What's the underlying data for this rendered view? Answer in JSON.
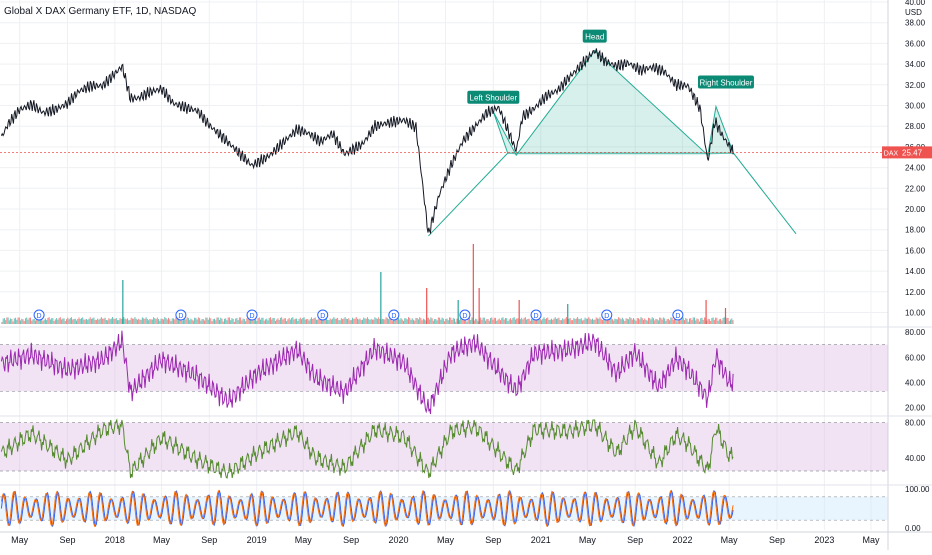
{
  "header": {
    "title": "Global X DAX Germany ETF, 1D, NASDAQ"
  },
  "colors": {
    "price_line": "#131722",
    "pattern_fill": "#22ab94",
    "pattern_label_bg": "#0b8a76",
    "rsi_line": "#9c27b0",
    "band_fill": "#e1bee7",
    "osc2_line": "#558b2f",
    "stoch_k": "#2962ff",
    "stoch_d": "#ff6d00",
    "stoch_band": "#cfe8fc",
    "volume_up": "#26a69a",
    "volume_down": "#ef5350",
    "dividend": "#2962ff",
    "price_tag": "#ef5350"
  },
  "chart_data": [
    {
      "type": "line",
      "name": "price",
      "y_axis_unit": "USD",
      "y_ticks": [
        "40.00",
        "38.00",
        "36.00",
        "34.00",
        "32.00",
        "30.00",
        "28.00",
        "26.00",
        "24.00",
        "22.00",
        "20.00",
        "18.00",
        "16.00",
        "14.00",
        "12.00",
        "10.00"
      ],
      "ylim": [
        8.6,
        40.0
      ],
      "x_labels": [
        "May",
        "Sep",
        "2018",
        "May",
        "Sep",
        "2019",
        "May",
        "Sep",
        "2020",
        "May",
        "Sep",
        "2021",
        "May",
        "Sep",
        "2022",
        "May",
        "Sep",
        "2023",
        "May"
      ],
      "series": [
        {
          "points": [
            [
              "2017-03-15",
              26.9
            ],
            [
              "2017-04-01",
              28.2
            ],
            [
              "2017-05-01",
              29.6
            ],
            [
              "2017-06-01",
              30.1
            ],
            [
              "2017-07-01",
              29.3
            ],
            [
              "2017-08-01",
              29.6
            ],
            [
              "2017-09-01",
              30.2
            ],
            [
              "2017-10-01",
              31.4
            ],
            [
              "2017-11-01",
              31.9
            ],
            [
              "2017-12-01",
              31.9
            ],
            [
              "2018-01-20",
              33.8
            ],
            [
              "2018-02-10",
              30.7
            ],
            [
              "2018-03-01",
              30.7
            ],
            [
              "2018-04-01",
              31.3
            ],
            [
              "2018-05-01",
              31.6
            ],
            [
              "2018-06-01",
              30.2
            ],
            [
              "2018-07-01",
              29.8
            ],
            [
              "2018-08-01",
              29.5
            ],
            [
              "2018-09-01",
              28.1
            ],
            [
              "2018-10-15",
              26.6
            ],
            [
              "2018-12-20",
              24.2
            ],
            [
              "2019-02-01",
              25.1
            ],
            [
              "2019-03-01",
              26.1
            ],
            [
              "2019-04-15",
              27.7
            ],
            [
              "2019-05-15",
              27.3
            ],
            [
              "2019-06-15",
              26.5
            ],
            [
              "2019-07-15",
              27.3
            ],
            [
              "2019-08-15",
              25.3
            ],
            [
              "2019-10-01",
              26.3
            ],
            [
              "2019-11-01",
              28.0
            ],
            [
              "2019-12-01",
              28.3
            ],
            [
              "2020-01-15",
              28.6
            ],
            [
              "2020-02-15",
              27.9
            ],
            [
              "2020-03-18",
              17.5
            ],
            [
              "2020-04-15",
              21.4
            ],
            [
              "2020-05-15",
              24.2
            ],
            [
              "2020-06-15",
              26.6
            ],
            [
              "2020-07-15",
              27.9
            ],
            [
              "2020-08-15",
              29.3
            ],
            [
              "2020-09-15",
              29.8
            ],
            [
              "2020-10-30",
              25.6
            ],
            [
              "2020-11-15",
              28.9
            ],
            [
              "2020-12-15",
              29.7
            ],
            [
              "2021-01-15",
              30.9
            ],
            [
              "2021-02-15",
              31.5
            ],
            [
              "2021-03-15",
              32.7
            ],
            [
              "2021-04-15",
              33.9
            ],
            [
              "2021-05-20",
              35.3
            ],
            [
              "2021-06-15",
              34.3
            ],
            [
              "2021-07-15",
              33.8
            ],
            [
              "2021-08-15",
              34.1
            ],
            [
              "2021-09-15",
              33.4
            ],
            [
              "2021-10-15",
              33.7
            ],
            [
              "2021-11-15",
              33.3
            ],
            [
              "2021-12-15",
              32.0
            ],
            [
              "2022-01-15",
              31.9
            ],
            [
              "2022-02-15",
              29.7
            ],
            [
              "2022-03-07",
              24.6
            ],
            [
              "2022-03-25",
              28.5
            ],
            [
              "2022-04-15",
              27.0
            ],
            [
              "2022-05-12",
              25.5
            ]
          ]
        }
      ],
      "pattern": {
        "name": "Head and Shoulders",
        "labels": [
          "Left Shoulder",
          "Head",
          "Right Shoulder"
        ],
        "points": [
          [
            "2020-10-08",
            25.4
          ],
          [
            "2020-09-01",
            29.4
          ],
          [
            "2020-10-30",
            25.2
          ],
          [
            "2021-05-20",
            35.3
          ],
          [
            "2022-03-07",
            25.2
          ],
          [
            "2022-03-28",
            29.9
          ],
          [
            "2022-05-12",
            25.4
          ],
          [
            "2022-10-20",
            17.6
          ]
        ],
        "rally_line": [
          [
            "2020-03-18",
            17.4
          ],
          [
            "2020-10-08",
            25.4
          ]
        ]
      },
      "last_price": {
        "label": "DAX",
        "value": "25.47"
      }
    },
    {
      "type": "bar",
      "name": "volume",
      "dividend_marker": "D",
      "dividends": [
        "2017-06-20",
        "2018-06-20",
        "2018-12-20",
        "2019-06-20",
        "2019-12-20",
        "2020-06-20",
        "2020-12-20",
        "2021-06-20",
        "2021-12-20"
      ],
      "spikes": [
        [
          "2018-01-20",
          0.55,
          "up"
        ],
        [
          "2019-11-15",
          0.65,
          "up"
        ],
        [
          "2020-03-12",
          0.45,
          "down"
        ],
        [
          "2020-06-01",
          0.3,
          "up"
        ],
        [
          "2020-07-10",
          1.0,
          "down"
        ],
        [
          "2020-07-25",
          0.45,
          "down"
        ],
        [
          "2020-11-05",
          0.3,
          "down"
        ],
        [
          "2021-03-10",
          0.25,
          "up"
        ],
        [
          "2022-03-01",
          0.3,
          "down"
        ],
        [
          "2022-04-20",
          0.2,
          "down"
        ]
      ]
    },
    {
      "type": "line",
      "name": "oscillator-1",
      "ticks": [
        "80.00",
        "60.00",
        "40.00",
        "20.00"
      ],
      "band": [
        33,
        70
      ],
      "ylim": [
        15,
        84
      ],
      "series": [
        {
          "points": [
            [
              "2017-03-15",
              55
            ],
            [
              "2017-06-01",
              62
            ],
            [
              "2017-09-01",
              50
            ],
            [
              "2017-12-01",
              58
            ],
            [
              "2018-01-20",
              73
            ],
            [
              "2018-02-10",
              32
            ],
            [
              "2018-05-01",
              58
            ],
            [
              "2018-08-01",
              45
            ],
            [
              "2018-10-20",
              25
            ],
            [
              "2019-01-01",
              47
            ],
            [
              "2019-04-15",
              66
            ],
            [
              "2019-06-01",
              44
            ],
            [
              "2019-08-15",
              32
            ],
            [
              "2019-11-01",
              67
            ],
            [
              "2020-01-15",
              56
            ],
            [
              "2020-03-18",
              18
            ],
            [
              "2020-05-15",
              63
            ],
            [
              "2020-07-15",
              72
            ],
            [
              "2020-10-30",
              33
            ],
            [
              "2020-12-15",
              63
            ],
            [
              "2021-03-15",
              66
            ],
            [
              "2021-05-20",
              73
            ],
            [
              "2021-07-15",
              47
            ],
            [
              "2021-09-01",
              64
            ],
            [
              "2021-11-01",
              36
            ],
            [
              "2021-12-15",
              59
            ],
            [
              "2022-01-15",
              50
            ],
            [
              "2022-03-07",
              27
            ],
            [
              "2022-03-28",
              61
            ],
            [
              "2022-05-01",
              40
            ],
            [
              "2022-05-12",
              40
            ]
          ]
        }
      ]
    },
    {
      "type": "line",
      "name": "oscillator-2",
      "ticks": [
        "80.00",
        "40.00"
      ],
      "band": [
        25,
        80
      ],
      "ylim": [
        17,
        83
      ],
      "series": [
        {
          "points": [
            [
              "2017-03-15",
              45
            ],
            [
              "2017-06-01",
              68
            ],
            [
              "2017-09-01",
              37
            ],
            [
              "2017-12-01",
              72
            ],
            [
              "2018-01-20",
              78
            ],
            [
              "2018-02-10",
              23
            ],
            [
              "2018-05-01",
              63
            ],
            [
              "2018-08-01",
              38
            ],
            [
              "2018-10-20",
              22
            ],
            [
              "2019-01-01",
              45
            ],
            [
              "2019-04-15",
              70
            ],
            [
              "2019-06-01",
              40
            ],
            [
              "2019-08-15",
              28
            ],
            [
              "2019-11-01",
              72
            ],
            [
              "2020-01-15",
              64
            ],
            [
              "2020-03-18",
              22
            ],
            [
              "2020-05-15",
              70
            ],
            [
              "2020-07-15",
              76
            ],
            [
              "2020-10-30",
              25
            ],
            [
              "2020-12-15",
              72
            ],
            [
              "2021-03-15",
              70
            ],
            [
              "2021-05-20",
              78
            ],
            [
              "2021-07-15",
              45
            ],
            [
              "2021-09-01",
              76
            ],
            [
              "2021-11-01",
              33
            ],
            [
              "2021-12-15",
              66
            ],
            [
              "2022-01-15",
              56
            ],
            [
              "2022-03-07",
              25
            ],
            [
              "2022-03-28",
              75
            ],
            [
              "2022-05-01",
              42
            ],
            [
              "2022-05-12",
              42
            ]
          ]
        }
      ]
    },
    {
      "type": "line",
      "name": "stochastic",
      "ticks": [
        "100.00",
        "0.00"
      ],
      "band": [
        20,
        80
      ],
      "ylim": [
        0,
        100
      ],
      "series": [
        {
          "name": "%K",
          "cycles": 68,
          "phase": 0.0
        },
        {
          "name": "%D",
          "cycles": 68,
          "phase": 0.55
        }
      ]
    }
  ]
}
